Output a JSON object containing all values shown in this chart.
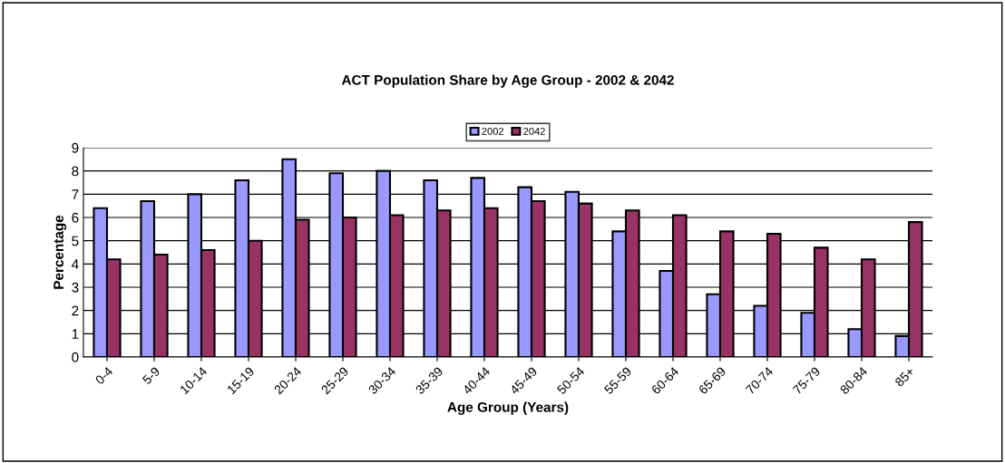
{
  "chart_data": {
    "type": "bar",
    "title": "ACT Population Share by Age Group - 2002 & 2042",
    "xlabel": "Age Group (Years)",
    "ylabel": "Percentage",
    "categories": [
      "0-4",
      "5-9",
      "10-14",
      "15-19",
      "20-24",
      "25-29",
      "30-34",
      "35-39",
      "40-44",
      "45-49",
      "50-54",
      "55-59",
      "60-64",
      "65-69",
      "70-74",
      "75-79",
      "80-84",
      "85+"
    ],
    "series": [
      {
        "name": "2002",
        "color": "#9999ff",
        "values": [
          6.4,
          6.7,
          7.0,
          7.6,
          8.5,
          7.9,
          8.0,
          7.6,
          7.7,
          7.3,
          7.1,
          5.4,
          3.7,
          2.7,
          2.2,
          1.9,
          1.2,
          0.9
        ]
      },
      {
        "name": "2042",
        "color": "#993366",
        "values": [
          4.2,
          4.4,
          4.6,
          5.0,
          5.9,
          6.0,
          6.1,
          6.3,
          6.4,
          6.7,
          6.6,
          6.3,
          6.1,
          5.4,
          5.3,
          4.7,
          4.2,
          5.8
        ]
      }
    ],
    "ylim": [
      0,
      9
    ],
    "yticks": [
      0,
      1,
      2,
      3,
      4,
      5,
      6,
      7,
      8,
      9
    ],
    "grid": "y",
    "legend": "top"
  }
}
